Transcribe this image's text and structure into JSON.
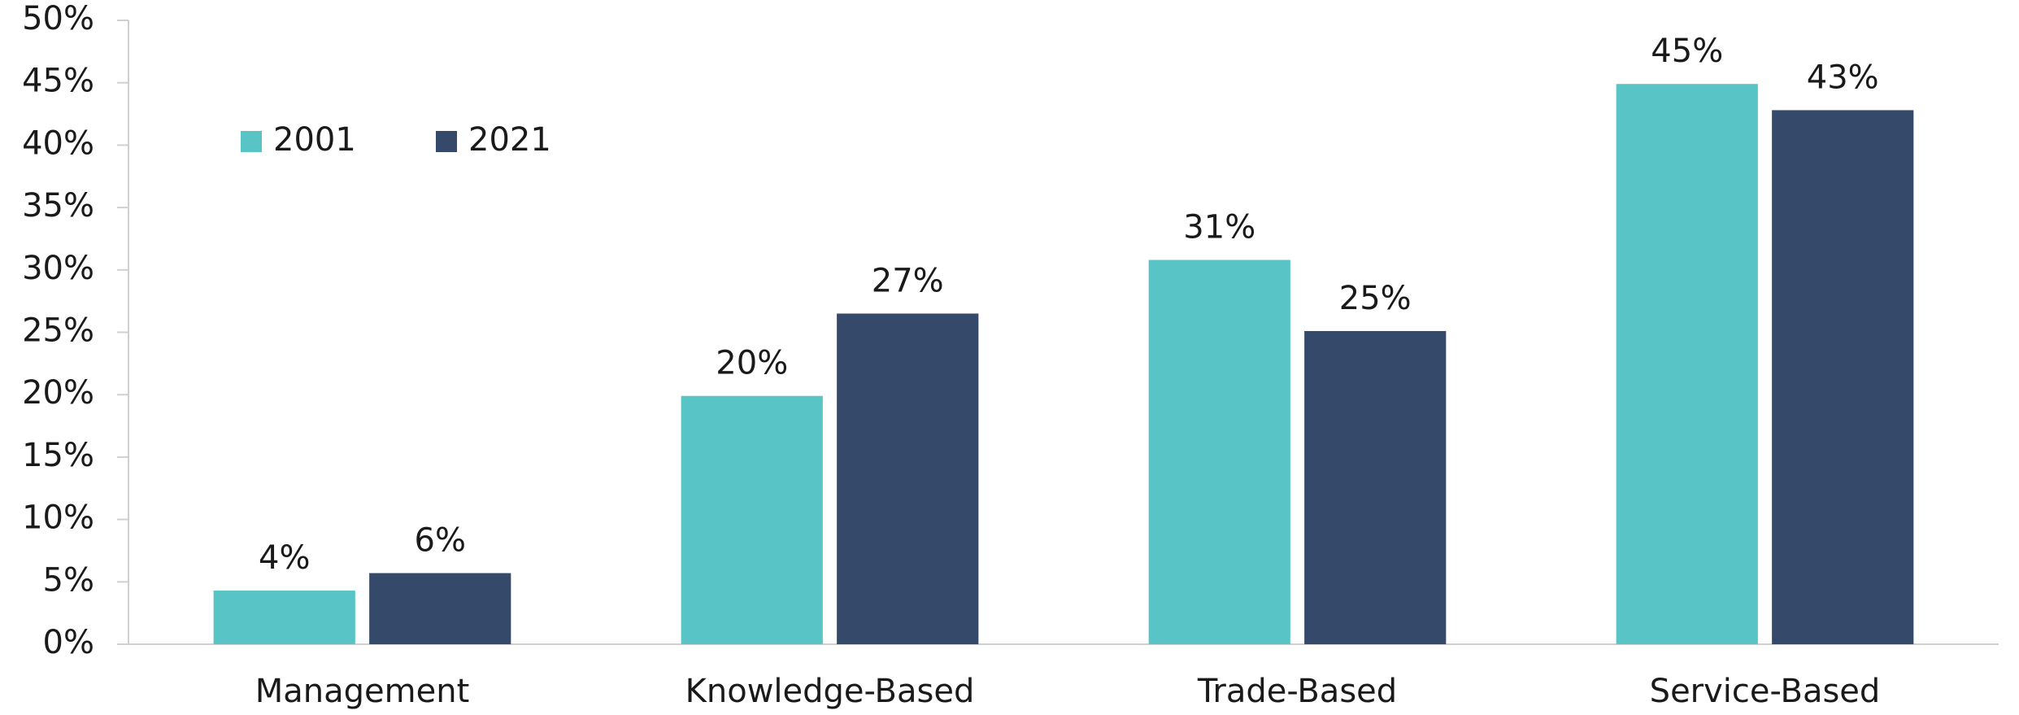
{
  "chart_data": {
    "type": "bar",
    "categories": [
      "Management",
      "Knowledge-Based",
      "Trade-Based",
      "Service-Based"
    ],
    "series": [
      {
        "name": "2001",
        "color": "#58c4c6",
        "values": [
          4.3,
          19.9,
          30.8,
          44.9
        ],
        "value_labels": [
          "4%",
          "20%",
          "31%",
          "45%"
        ]
      },
      {
        "name": "2021",
        "color": "#35496b",
        "values": [
          5.7,
          26.5,
          25.1,
          42.8
        ],
        "value_labels": [
          "6%",
          "27%",
          "25%",
          "43%"
        ]
      }
    ],
    "ylim": [
      0,
      50
    ],
    "yticks": [
      {
        "value": 0,
        "label": "0%"
      },
      {
        "value": 5,
        "label": "5%"
      },
      {
        "value": 10,
        "label": "10%"
      },
      {
        "value": 15,
        "label": "15%"
      },
      {
        "value": 20,
        "label": "20%"
      },
      {
        "value": 25,
        "label": "25%"
      },
      {
        "value": 30,
        "label": "30%"
      },
      {
        "value": 35,
        "label": "35%"
      },
      {
        "value": 40,
        "label": "40%"
      },
      {
        "value": 45,
        "label": "45%"
      },
      {
        "value": 50,
        "label": "50%"
      }
    ],
    "grid": false,
    "legend": "top-left"
  }
}
